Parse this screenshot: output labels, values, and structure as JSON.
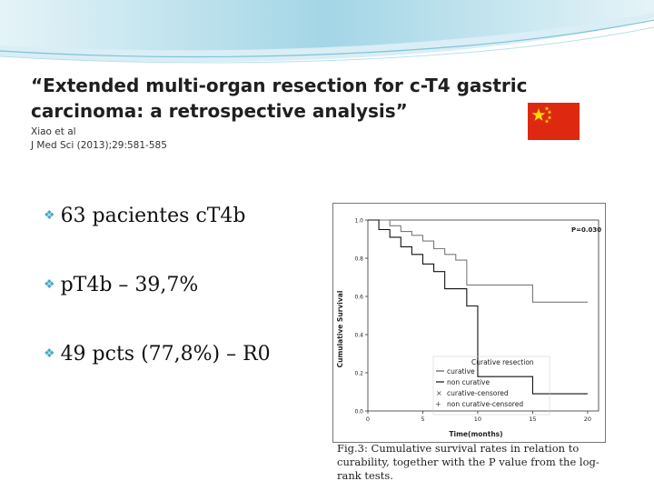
{
  "slide": {
    "title": "“Extended multi-organ resection for c-T4 gastric carcinoma: a retrospective analysis”",
    "authors": "Xiao et al",
    "journal": "J Med Sci (2013);29:581-585",
    "bullets": [
      "63 pacientes cT4b",
      "pT4b – 39,7%",
      "49 pcts (77,8%) – R0"
    ],
    "flag_colors": {
      "field": "#de2910",
      "stars": "#ffde00"
    },
    "accent": "#4aa9c9"
  },
  "figure": {
    "ylabel": "Cumulative Survival",
    "xlabel": "Time(months)",
    "p_value": "P=0.030",
    "y_ticks": [
      "1.0",
      "0.8",
      "0.6",
      "0.4",
      "0.2",
      "0.0"
    ],
    "x_ticks": [
      "0",
      "5",
      "10",
      "15",
      "20"
    ],
    "legend_title": "Curative resection",
    "legend": [
      "curative",
      "non curative",
      "curative-censored",
      "non curative-censored"
    ],
    "caption": "Fig.3: Cumulative survival rates in relation to curability, together with the P value from the log-rank tests."
  },
  "chart_data": {
    "type": "line",
    "title": "",
    "xlabel": "Time(months)",
    "ylabel": "Cumulative Survival",
    "xlim": [
      0,
      21
    ],
    "ylim": [
      0,
      1.0
    ],
    "annotation": "P=0.030",
    "series": [
      {
        "name": "curative",
        "x": [
          0,
          2,
          3,
          4,
          5,
          6,
          7,
          8,
          9,
          14,
          15,
          20
        ],
        "y": [
          1.0,
          0.97,
          0.94,
          0.92,
          0.89,
          0.85,
          0.82,
          0.79,
          0.66,
          0.66,
          0.57,
          0.57
        ]
      },
      {
        "name": "non curative",
        "x": [
          0,
          1,
          2,
          3,
          4,
          5,
          6,
          7,
          9,
          10,
          14,
          15,
          20
        ],
        "y": [
          1.0,
          0.95,
          0.91,
          0.86,
          0.82,
          0.77,
          0.73,
          0.64,
          0.55,
          0.18,
          0.18,
          0.09,
          0.09
        ]
      }
    ]
  }
}
